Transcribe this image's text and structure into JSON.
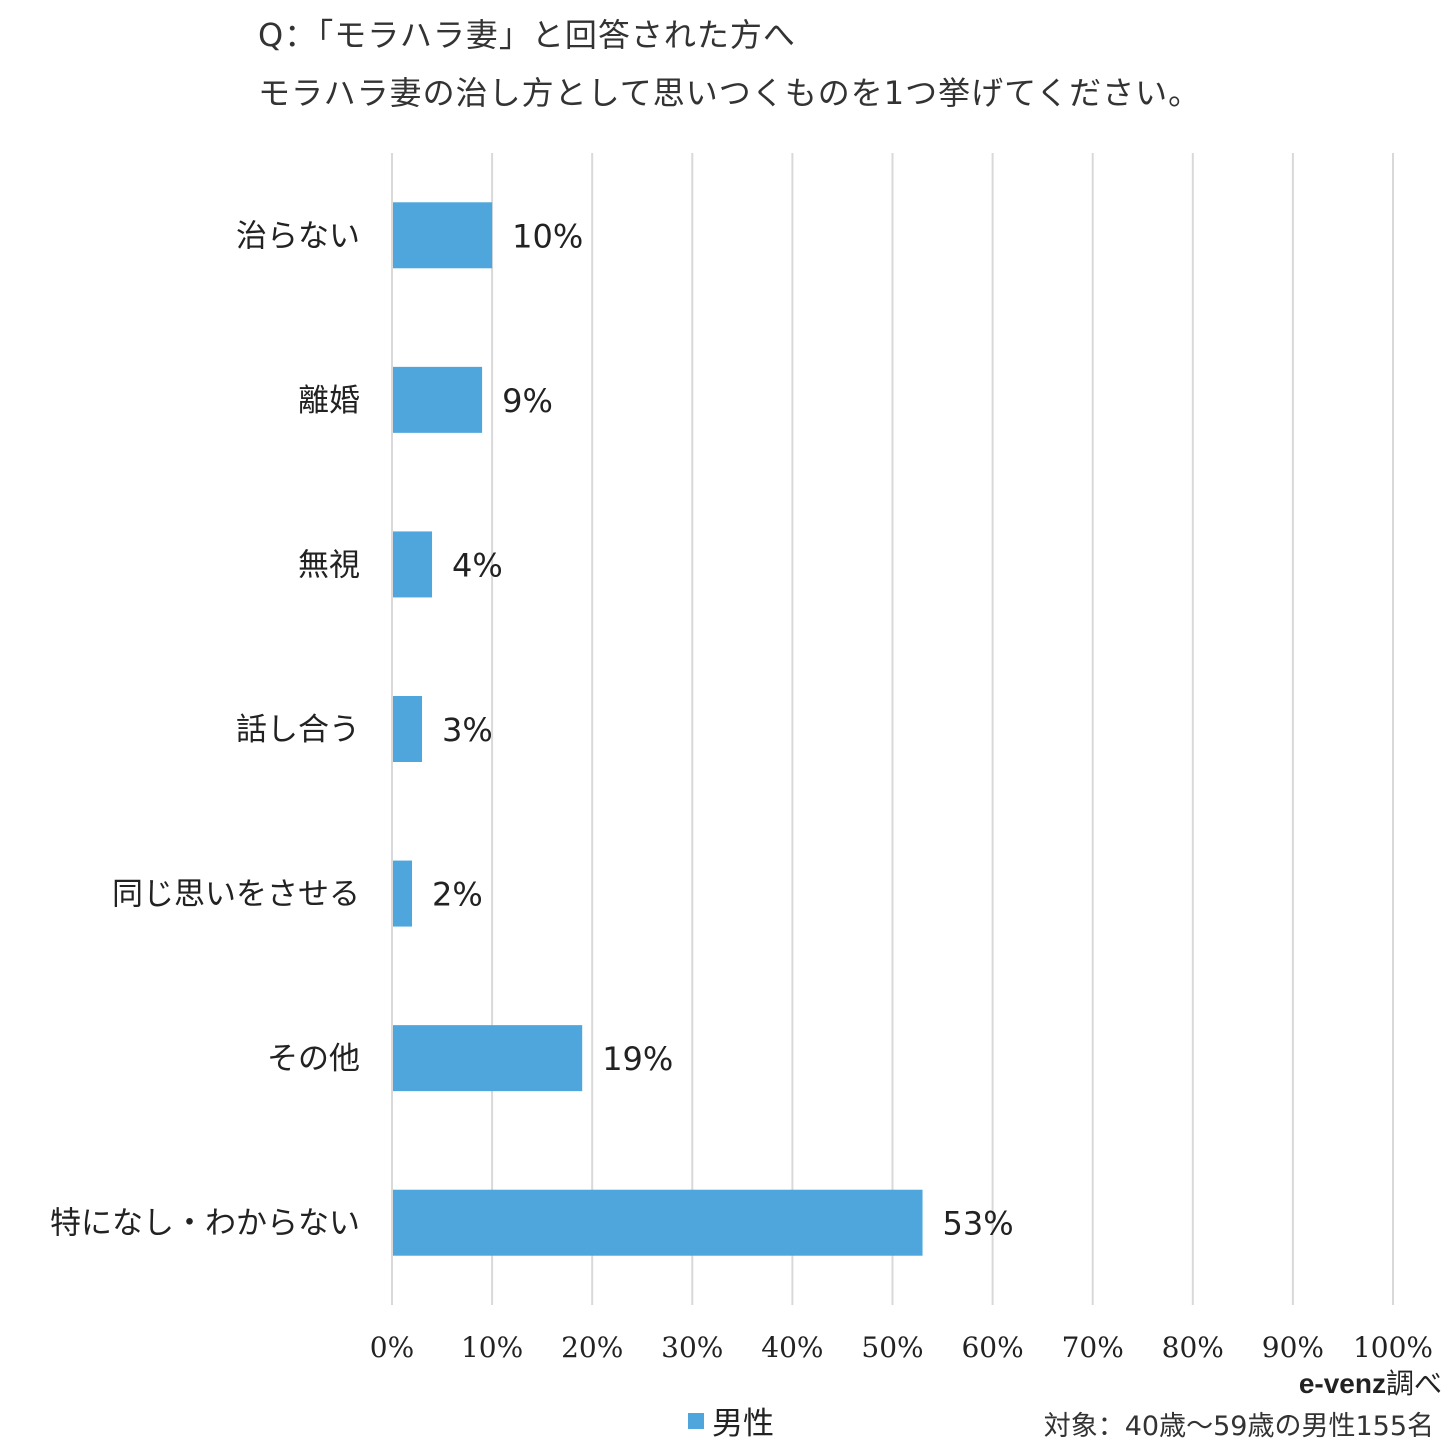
{
  "title": {
    "line1": "Q：「モラハラ妻」と回答された方へ",
    "line2": "モラハラ妻の治し方として思いつくものを1つ挙げてください。"
  },
  "chart_data": {
    "type": "bar",
    "orientation": "horizontal",
    "categories": [
      "治らない",
      "離婚",
      "無視",
      "話し合う",
      "同じ思いをさせる",
      "その他",
      "特になし・わからない"
    ],
    "series": [
      {
        "name": "男性",
        "values": [
          10,
          9,
          4,
          3,
          2,
          19,
          53
        ],
        "labels": [
          "10%",
          "9%",
          "4%",
          "3%",
          "2%",
          "19%",
          "53%"
        ],
        "color": "#4ea6dc"
      }
    ],
    "xlim": [
      0,
      100
    ],
    "x_ticks": [
      "0%",
      "10%",
      "20%",
      "30%",
      "40%",
      "50%",
      "60%",
      "70%",
      "80%",
      "90%",
      "100%"
    ],
    "grid": true,
    "legend_position": "bottom"
  },
  "source": {
    "brand": "e-venz",
    "suffix": "調べ"
  },
  "target_note": "対象：40歳～59歳の男性155名"
}
